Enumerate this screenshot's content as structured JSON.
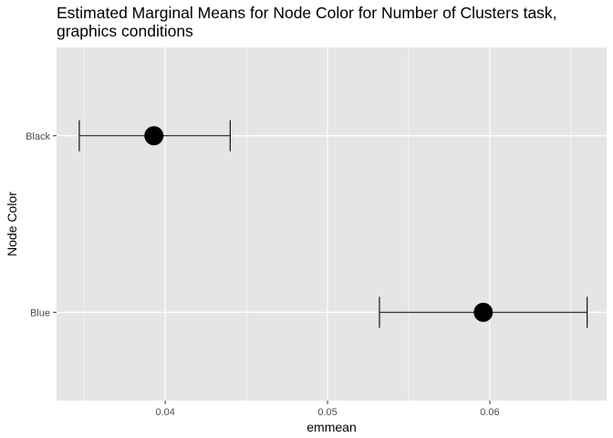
{
  "chart_data": {
    "type": "errorbar-point",
    "title_lines": [
      "Estimated Marginal Means for Node Color for Number of Clusters task,",
      "graphics conditions"
    ],
    "xlabel": "emmean",
    "ylabel": "Node Color",
    "xlim": [
      0.0333,
      0.0672
    ],
    "x_ticks": [
      0.04,
      0.05,
      0.06
    ],
    "x_tick_labels": [
      "0.04",
      "0.05",
      "0.06"
    ],
    "categories": [
      "Black",
      "Blue"
    ],
    "points": [
      {
        "category": "Black",
        "emmean": 0.0393,
        "lower": 0.0347,
        "upper": 0.044
      },
      {
        "category": "Blue",
        "emmean": 0.0596,
        "lower": 0.0532,
        "upper": 0.066
      }
    ],
    "grid": true,
    "panel_background": "#e5e5e5",
    "grid_color": "#ffffff",
    "point_color": "#000000"
  }
}
